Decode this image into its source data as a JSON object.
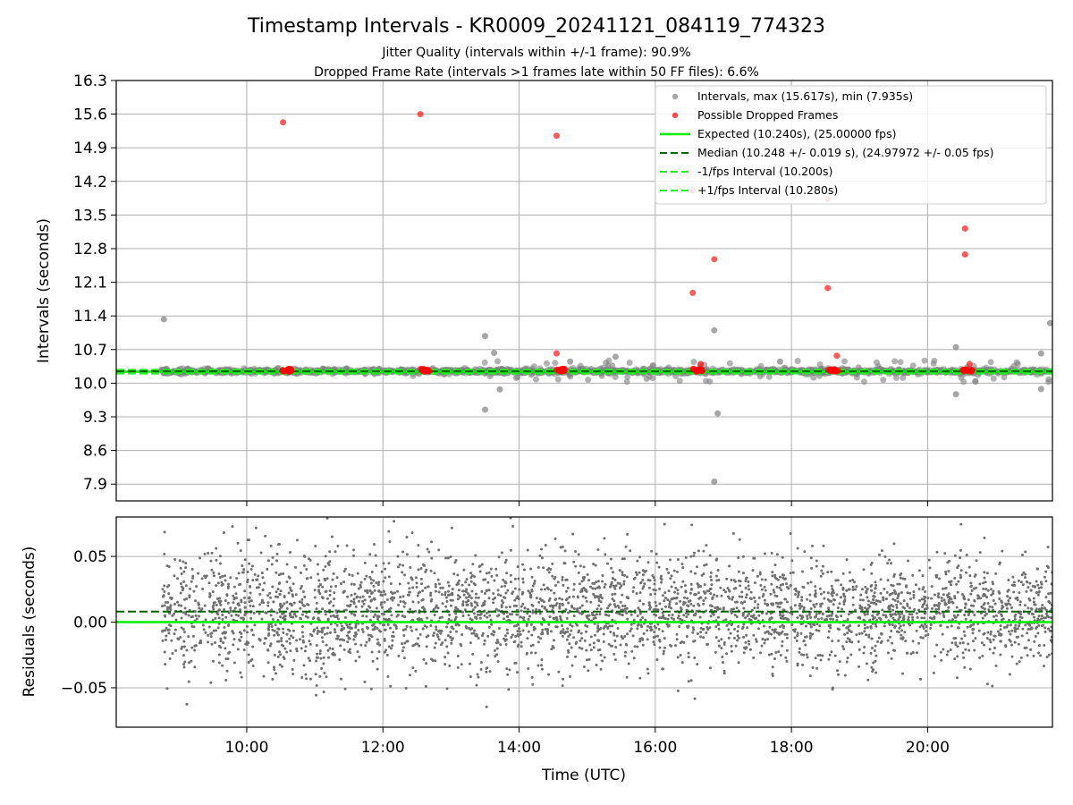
{
  "figure": {
    "title": "Timestamp Intervals - KR0009_20241121_084119_774323",
    "subtitle1": "Jitter Quality (intervals within +/-1 frame): 90.9%",
    "subtitle2": "Dropped Frame Rate (intervals >1 frames late within 50 FF files): 6.6%"
  },
  "colors": {
    "intervals": "#808080",
    "dropped": "#ff0000",
    "expected": "#00ee00",
    "median": "#006400",
    "fps_interval": "#22ee22",
    "residuals": "#707070",
    "grid": "#b0b0b0"
  },
  "chart_data": [
    {
      "type": "scatter",
      "name": "intervals",
      "xlabel": "",
      "ylabel": "Intervals (seconds)",
      "xlim": [
        "08:05",
        "21:50"
      ],
      "ylim": [
        7.55,
        16.3
      ],
      "yticks": [
        "7.9",
        "8.6",
        "9.3",
        "10.0",
        "10.7",
        "11.4",
        "12.1",
        "12.8",
        "13.5",
        "14.2",
        "14.9",
        "15.6",
        "16.3"
      ],
      "grid": true,
      "legend_position": "top-right",
      "legend": [
        {
          "label": "Intervals, max (15.617s), min (7.935s)",
          "style": "marker-gray"
        },
        {
          "label": "Possible Dropped Frames",
          "style": "marker-red"
        },
        {
          "label": "Expected (10.240s), (25.00000 fps)",
          "style": "line-expected"
        },
        {
          "label": "Median (10.248 +/- 0.019 s), (24.97972 +/- 0.05 fps)",
          "style": "line-median"
        },
        {
          "label": "-1/fps Interval (10.200s)",
          "style": "line-fps"
        },
        {
          "label": "+1/fps Interval (10.280s)",
          "style": "line-fps"
        }
      ],
      "lines": {
        "expected": 10.24,
        "median": 10.248,
        "minus_fps": 10.2,
        "plus_fps": 10.28
      },
      "outliers": [
        {
          "t": "08:47",
          "y": 11.33
        },
        {
          "t": "13:30",
          "y": 10.98
        },
        {
          "t": "13:30",
          "y": 9.45
        },
        {
          "t": "13:38",
          "y": 10.63
        },
        {
          "t": "13:43",
          "y": 9.87
        },
        {
          "t": "14:45",
          "y": 10.45
        },
        {
          "t": "15:25",
          "y": 10.55
        },
        {
          "t": "16:52",
          "y": 11.1
        },
        {
          "t": "16:55",
          "y": 9.37
        },
        {
          "t": "16:52",
          "y": 7.95
        },
        {
          "t": "17:50",
          "y": 10.45
        },
        {
          "t": "20:25",
          "y": 10.75
        },
        {
          "t": "20:25",
          "y": 9.77
        },
        {
          "t": "21:40",
          "y": 10.62
        },
        {
          "t": "21:40",
          "y": 9.88
        },
        {
          "t": "21:48",
          "y": 11.25
        }
      ],
      "dropped_clusters": [
        {
          "t": "10:35",
          "y": 10.27
        },
        {
          "t": "12:37",
          "y": 10.27
        },
        {
          "t": "14:37",
          "y": 10.27
        },
        {
          "t": "16:37",
          "y": 10.27
        },
        {
          "t": "18:37",
          "y": 10.27
        },
        {
          "t": "20:35",
          "y": 10.27
        }
      ],
      "dropped_points": [
        {
          "t": "10:32",
          "y": 15.43
        },
        {
          "t": "12:33",
          "y": 15.6
        },
        {
          "t": "14:33",
          "y": 15.15
        },
        {
          "t": "16:33",
          "y": 14.02
        },
        {
          "t": "16:33",
          "y": 11.88
        },
        {
          "t": "16:52",
          "y": 12.58
        },
        {
          "t": "18:32",
          "y": 13.83
        },
        {
          "t": "18:32",
          "y": 11.98
        },
        {
          "t": "20:33",
          "y": 13.22
        },
        {
          "t": "20:33",
          "y": 12.68
        },
        {
          "t": "14:33",
          "y": 10.62
        },
        {
          "t": "18:40",
          "y": 10.57
        },
        {
          "t": "16:40",
          "y": 10.4
        },
        {
          "t": "20:37",
          "y": 10.4
        }
      ]
    },
    {
      "type": "scatter",
      "name": "residuals",
      "xlabel": "Time (UTC)",
      "ylabel": "Residuals (seconds)",
      "xlim": [
        "08:05",
        "21:50"
      ],
      "ylim": [
        -0.08,
        0.08
      ],
      "yticks": [
        "−0.05",
        "0.00",
        "0.05"
      ],
      "xticks": [
        "10:00",
        "12:00",
        "14:00",
        "16:00",
        "18:00",
        "20:00"
      ],
      "grid": true,
      "lines": {
        "expected": 0.0,
        "median": 0.008
      },
      "data_start": "08:45",
      "data_end": "21:50",
      "spread_sd": 0.022
    }
  ]
}
